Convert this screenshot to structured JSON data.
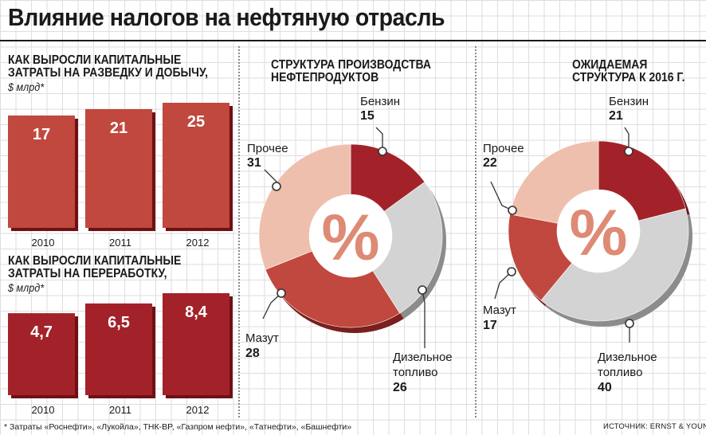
{
  "title": "Влияние налогов на нефтяную отрасль",
  "footnote": "* Затраты «Роснефти», «Лукойла», ТНК-BP, «Газпром нефти», «Татнефти», «Башнефти»",
  "source": "ИСТОЧНИК: ERNST & YOUNG",
  "colors": {
    "bar_top": "#c0483e",
    "bar_bottom": "#a3222a",
    "benzin": "#a3222a",
    "dizel": "#d3d3d3",
    "mazut": "#c0483e",
    "prochee": "#efbfad",
    "percent": "#de8a74"
  },
  "chart_data": [
    {
      "type": "bar",
      "title_line1": "КАК ВЫРОСЛИ КАПИТАЛЬНЫЕ",
      "title_line2": "ЗАТРАТЫ НА РАЗВЕДКУ И ДОБЫЧУ,",
      "unit": "$ млрд*",
      "categories": [
        "2010",
        "2011",
        "2012"
      ],
      "values": [
        17,
        21,
        25
      ],
      "labels": [
        "17",
        "21",
        "25"
      ],
      "ylim": [
        0,
        25
      ]
    },
    {
      "type": "bar",
      "title_line1": "КАК ВЫРОСЛИ КАПИТАЛЬНЫЕ",
      "title_line2": "ЗАТРАТЫ НА ПЕРЕРАБОТКУ,",
      "unit": "$ млрд*",
      "categories": [
        "2010",
        "2011",
        "2012"
      ],
      "values": [
        4.7,
        6.5,
        8.4
      ],
      "labels": [
        "4,7",
        "6,5",
        "8,4"
      ],
      "ylim": [
        0,
        8.4
      ]
    },
    {
      "type": "pie",
      "title_line1": "СТРУКТУРА ПРОИЗВОДСТВА",
      "title_line2": "НЕФТЕПРОДУКТОВ",
      "center": "%",
      "slices": [
        {
          "label": "Бензин",
          "value": 15,
          "color_key": "benzin"
        },
        {
          "label_line1": "Дизельное",
          "label_line2": "топливо",
          "value": 26,
          "color_key": "dizel"
        },
        {
          "label": "Мазут",
          "value": 28,
          "color_key": "mazut"
        },
        {
          "label": "Прочее",
          "value": 31,
          "color_key": "prochee"
        }
      ]
    },
    {
      "type": "pie",
      "title_line1": "ОЖИДАЕМАЯ",
      "title_line2": "СТРУКТУРА К 2016 Г.",
      "center": "%",
      "slices": [
        {
          "label": "Бензин",
          "value": 21,
          "color_key": "benzin"
        },
        {
          "label_line1": "Дизельное",
          "label_line2": "топливо",
          "value": 40,
          "color_key": "dizel"
        },
        {
          "label": "Мазут",
          "value": 17,
          "color_key": "mazut"
        },
        {
          "label": "Прочее",
          "value": 22,
          "color_key": "prochee"
        }
      ]
    }
  ]
}
